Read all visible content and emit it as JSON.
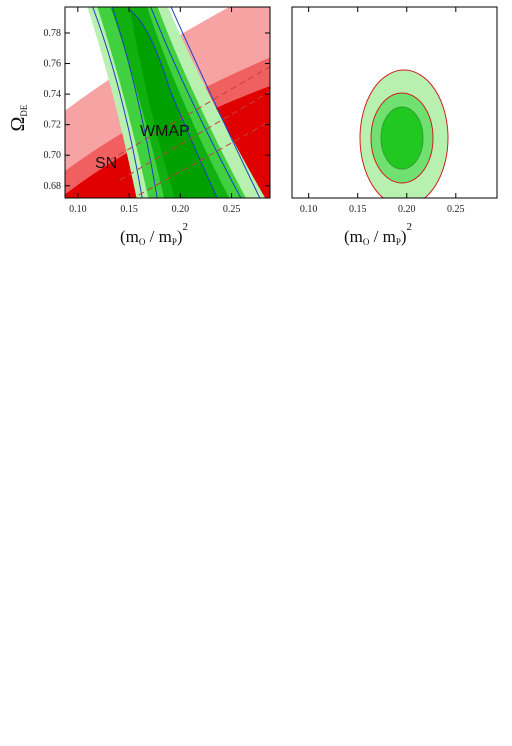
{
  "chart_data": [
    {
      "type": "contour",
      "xlabel": {
        "open": "(m",
        "sub1": "O",
        "mid": " / m",
        "sub2": "P",
        "close": ")",
        "sup": "2"
      },
      "ylabel": {
        "symbol": "Ω",
        "subscript": "DE"
      },
      "annotations": [
        "WMAP",
        "SN"
      ],
      "xlim": [
        0.0875,
        0.2875
      ],
      "xticks": [
        0.1,
        0.15,
        0.2,
        0.25
      ],
      "ylim": [
        0.672,
        0.797
      ],
      "yticks": [
        0.68,
        0.7,
        0.72,
        0.74,
        0.76,
        0.78
      ]
    },
    {
      "type": "contour",
      "xlabel": {
        "open": "(m",
        "sub1": "O",
        "mid": " / m",
        "sub2": "P",
        "close": ")",
        "sup": "2"
      },
      "xlim": [
        0.083,
        0.292
      ],
      "xticks": [
        0.1,
        0.15,
        0.2,
        0.25
      ]
    }
  ]
}
